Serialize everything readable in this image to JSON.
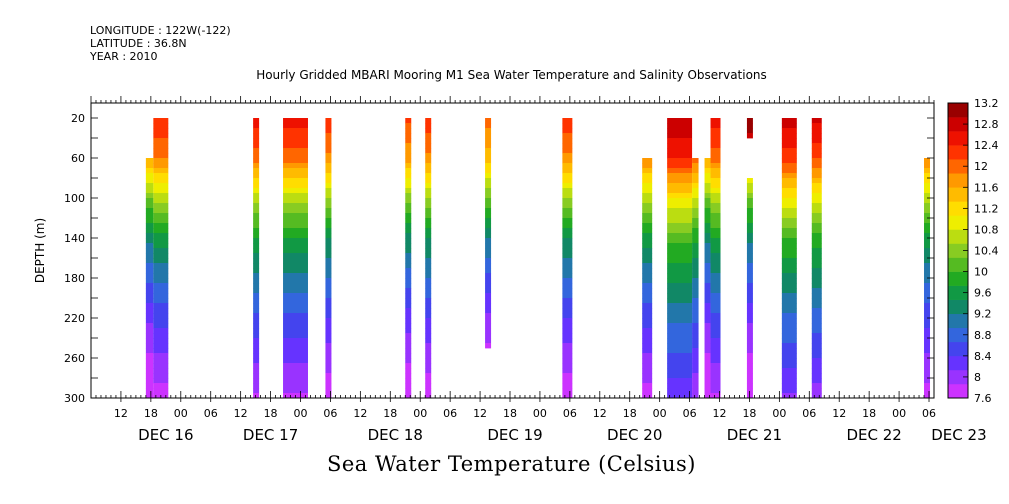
{
  "header": {
    "longitude": "LONGITUDE : 122W(-122)",
    "latitude": "LATITUDE : 36.8N",
    "year": "YEAR : 2010"
  },
  "colors": {
    "colorbar": [
      "#cc33ff",
      "#9933ff",
      "#6633ff",
      "#4444ee",
      "#3366dd",
      "#2277aa",
      "#118866",
      "#119944",
      "#22aa22",
      "#55bb22",
      "#88cc22",
      "#bbdd11",
      "#eeee00",
      "#ffdd00",
      "#ffbb00",
      "#ff9900",
      "#ff6600",
      "#ff3300",
      "#ee1100",
      "#cc0000",
      "#990000"
    ]
  },
  "chart_data": {
    "type": "heatmap",
    "title": "Hourly Gridded MBARI Mooring M1 Sea Water Temperature and Salinity Observations",
    "xlabel": "Sea Water Temperature (Celsius)",
    "ylabel": "DEPTH (m)",
    "x_unit": "hours since 2010-12-15 00:00",
    "xlim": [
      6,
      175
    ],
    "ylim": [
      300,
      5
    ],
    "y_ticks": [
      20,
      60,
      100,
      140,
      180,
      220,
      260,
      300
    ],
    "x_hour_ticks": [
      {
        "h": 12,
        "label": "12"
      },
      {
        "h": 18,
        "label": "18"
      },
      {
        "h": 24,
        "label": "00"
      },
      {
        "h": 30,
        "label": "06"
      },
      {
        "h": 36,
        "label": "12"
      },
      {
        "h": 42,
        "label": "18"
      },
      {
        "h": 48,
        "label": "00"
      },
      {
        "h": 54,
        "label": "06"
      },
      {
        "h": 60,
        "label": "12"
      },
      {
        "h": 66,
        "label": "18"
      },
      {
        "h": 72,
        "label": "00"
      },
      {
        "h": 78,
        "label": "06"
      },
      {
        "h": 84,
        "label": "12"
      },
      {
        "h": 90,
        "label": "18"
      },
      {
        "h": 96,
        "label": "00"
      },
      {
        "h": 102,
        "label": "06"
      },
      {
        "h": 108,
        "label": "12"
      },
      {
        "h": 114,
        "label": "18"
      },
      {
        "h": 120,
        "label": "00"
      },
      {
        "h": 126,
        "label": "06"
      },
      {
        "h": 132,
        "label": "12"
      },
      {
        "h": 138,
        "label": "18"
      },
      {
        "h": 144,
        "label": "00"
      },
      {
        "h": 150,
        "label": "06"
      },
      {
        "h": 156,
        "label": "12"
      },
      {
        "h": 162,
        "label": "18"
      },
      {
        "h": 168,
        "label": "00"
      },
      {
        "h": 174,
        "label": "06"
      }
    ],
    "day_labels": [
      {
        "h": 21,
        "label": "DEC 16"
      },
      {
        "h": 42,
        "label": "DEC 17"
      },
      {
        "h": 67,
        "label": "DEC 18"
      },
      {
        "h": 91,
        "label": "DEC 19"
      },
      {
        "h": 115,
        "label": "DEC 20"
      },
      {
        "h": 139,
        "label": "DEC 21"
      },
      {
        "h": 163,
        "label": "DEC 22"
      },
      {
        "h": 180,
        "label": "DEC 23"
      }
    ],
    "colorbar": {
      "levels": [
        7.6,
        8,
        8.4,
        8.8,
        9.2,
        9.6,
        10,
        10.4,
        10.8,
        11.2,
        11.6,
        12,
        12.4,
        12.8,
        13.2
      ],
      "min": 7.6,
      "max": 13.2
    },
    "profile": {
      "depth": [
        20,
        60,
        100,
        140,
        180,
        220,
        260,
        300
      ],
      "temperature": [
        12.4,
        11.9,
        10.6,
        9.6,
        9.0,
        8.5,
        8.1,
        7.7
      ]
    },
    "columns": [
      {
        "x0": 17.0,
        "x1": 18.5,
        "top": 60,
        "bottom": 300,
        "offset": -0.3
      },
      {
        "x0": 18.5,
        "x1": 21.5,
        "top": 20,
        "bottom": 300,
        "offset": 0.0
      },
      {
        "x0": 38.5,
        "x1": 39.7,
        "top": 20,
        "bottom": 300,
        "offset": 0.1
      },
      {
        "x0": 44.5,
        "x1": 49.5,
        "top": 20,
        "bottom": 300,
        "offset": 0.1
      },
      {
        "x0": 53.0,
        "x1": 54.2,
        "top": 20,
        "bottom": 300,
        "offset": -0.1
      },
      {
        "x0": 69.0,
        "x1": 70.2,
        "top": 20,
        "bottom": 300,
        "offset": -0.2
      },
      {
        "x0": 73.0,
        "x1": 74.2,
        "top": 20,
        "bottom": 300,
        "offset": -0.1
      },
      {
        "x0": 85.0,
        "x1": 86.2,
        "top": 20,
        "bottom": 250,
        "offset": -0.4
      },
      {
        "x0": 100.5,
        "x1": 102.5,
        "top": 20,
        "bottom": 300,
        "offset": -0.1
      },
      {
        "x0": 116.5,
        "x1": 118.5,
        "top": 60,
        "bottom": 300,
        "offset": 0.0
      },
      {
        "x0": 121.5,
        "x1": 126.5,
        "top": 20,
        "bottom": 300,
        "offset": 0.5
      },
      {
        "x0": 126.5,
        "x1": 127.8,
        "top": 60,
        "bottom": 300,
        "offset": 0.2
      },
      {
        "x0": 129.0,
        "x1": 130.2,
        "top": 60,
        "bottom": 300,
        "offset": -0.3
      },
      {
        "x0": 130.2,
        "x1": 132.2,
        "top": 20,
        "bottom": 300,
        "offset": 0.1
      },
      {
        "x0": 137.5,
        "x1": 138.7,
        "top": 20,
        "bottom": 40,
        "offset": 0.7
      },
      {
        "x0": 137.5,
        "x1": 138.7,
        "top": 80,
        "bottom": 300,
        "offset": -0.3
      },
      {
        "x0": 144.5,
        "x1": 147.5,
        "top": 20,
        "bottom": 300,
        "offset": 0.4
      },
      {
        "x0": 150.5,
        "x1": 152.5,
        "top": 20,
        "bottom": 300,
        "offset": 0.3
      },
      {
        "x0": 173.0,
        "x1": 174.2,
        "top": 60,
        "bottom": 300,
        "offset": 0.0
      }
    ]
  }
}
